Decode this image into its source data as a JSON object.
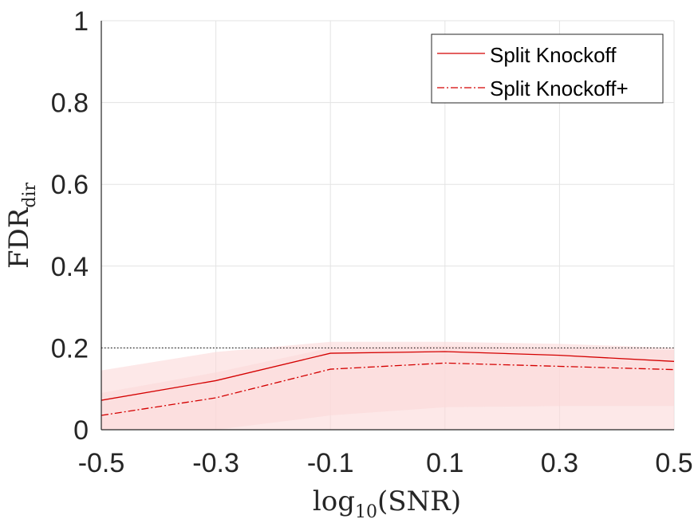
{
  "chart_data": {
    "type": "line",
    "xlabel": {
      "base": "log",
      "sub": "10",
      "rest": "(SNR)"
    },
    "ylabel": {
      "base": "FDR",
      "sub": "dir"
    },
    "x": [
      -0.5,
      -0.3,
      -0.1,
      0.1,
      0.3,
      0.5
    ],
    "xlim": [
      -0.5,
      0.5
    ],
    "ylim": [
      0,
      1
    ],
    "xticks": [
      "-0.5",
      "-0.3",
      "-0.1",
      "0.1",
      "0.3",
      "0.5"
    ],
    "yticks": [
      "0",
      "0.2",
      "0.4",
      "0.6",
      "0.8",
      "1"
    ],
    "grid": true,
    "legend_position": "top-right",
    "reference_line": {
      "y": 0.2,
      "style": "dotted",
      "color": "#000000"
    },
    "series": [
      {
        "name": "Split Knockoff",
        "style": "solid",
        "color": "#d40000",
        "values": [
          0.072,
          0.12,
          0.187,
          0.191,
          0.182,
          0.167
        ],
        "band_lower": [
          0.0,
          0.0,
          0.0,
          0.0,
          0.0,
          0.0
        ],
        "band_upper": [
          0.145,
          0.19,
          0.215,
          0.215,
          0.21,
          0.2
        ]
      },
      {
        "name": "Split Knockoff+",
        "style": "dashdot",
        "color": "#d40000",
        "values": [
          0.035,
          0.078,
          0.148,
          0.163,
          0.155,
          0.147
        ],
        "band_lower": [
          0.0,
          0.0,
          0.035,
          0.055,
          0.058,
          0.058
        ],
        "band_upper": [
          0.09,
          0.14,
          0.2,
          0.205,
          0.2,
          0.195
        ]
      }
    ],
    "colors": {
      "band": "#fbd8d8",
      "grid": "#e3e3e3",
      "axis": "#262626"
    }
  }
}
